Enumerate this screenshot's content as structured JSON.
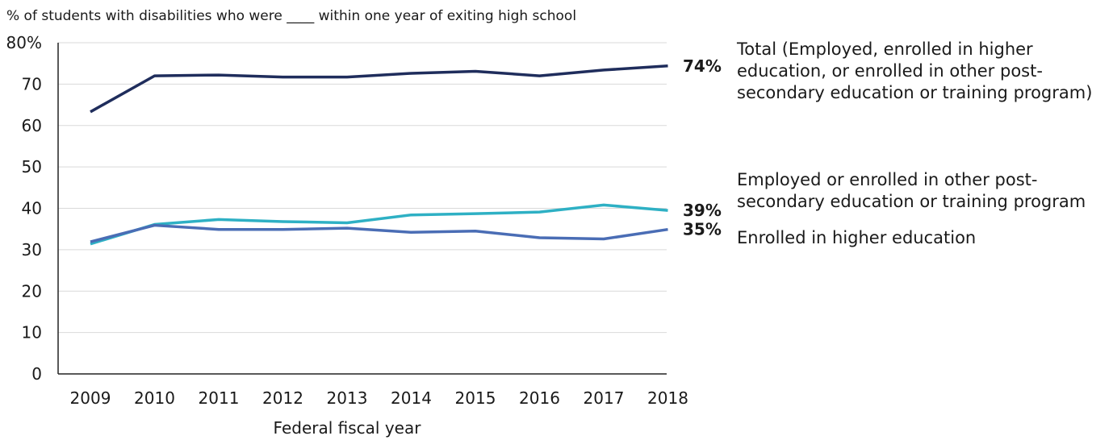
{
  "chart_data": {
    "type": "line",
    "title": "% of students with disabilities who were ____ within one year of exiting high school",
    "xlabel": "Federal fiscal year",
    "ylabel": "",
    "x": [
      "2009",
      "2010",
      "2011",
      "2012",
      "2013",
      "2014",
      "2015",
      "2016",
      "2017",
      "2018"
    ],
    "ylim": [
      0,
      80
    ],
    "yticks": [
      "0",
      "10",
      "20",
      "30",
      "40",
      "50",
      "60",
      "70",
      "80%"
    ],
    "grid": true,
    "series": [
      {
        "name": "Total (Employed, enrolled in higher education, or enrolled in other post-secondary education or training program)",
        "name_lines": [
          "Total (Employed, enrolled in higher",
          "education, or enrolled in other post-",
          "secondary education or training program)"
        ],
        "values": [
          63.3,
          72.0,
          72.2,
          71.7,
          71.7,
          72.6,
          73.1,
          72.0,
          73.4,
          74.4
        ],
        "end_label": "74%",
        "color": "#1f2d5c"
      },
      {
        "name": "Employed or enrolled in other post-secondary education or training program",
        "name_lines": [
          "Employed or enrolled in other post-",
          "secondary education or training program"
        ],
        "values": [
          31.4,
          36.1,
          37.3,
          36.8,
          36.5,
          38.4,
          38.7,
          39.1,
          40.8,
          39.5
        ],
        "end_label": "39%",
        "color": "#2eb0c4"
      },
      {
        "name": "Enrolled in higher education",
        "name_lines": [
          "Enrolled in higher education"
        ],
        "values": [
          31.9,
          35.9,
          34.9,
          34.9,
          35.2,
          34.2,
          34.5,
          32.9,
          32.6,
          34.9
        ],
        "end_label": "35%",
        "color": "#4a6db5"
      }
    ]
  }
}
